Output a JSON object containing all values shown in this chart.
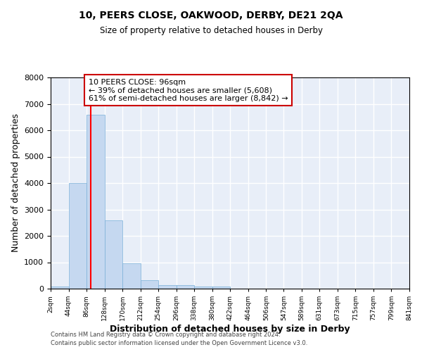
{
  "title": "10, PEERS CLOSE, OAKWOOD, DERBY, DE21 2QA",
  "subtitle": "Size of property relative to detached houses in Derby",
  "xlabel": "Distribution of detached houses by size in Derby",
  "ylabel": "Number of detached properties",
  "bin_edges": [
    2,
    44,
    86,
    128,
    170,
    212,
    254,
    296,
    338,
    380,
    422,
    464,
    506,
    547,
    589,
    631,
    673,
    715,
    757,
    799,
    841
  ],
  "bar_heights": [
    70,
    4000,
    6600,
    2600,
    970,
    330,
    130,
    130,
    70,
    70,
    0,
    0,
    0,
    0,
    0,
    0,
    0,
    0,
    0,
    0
  ],
  "bar_color": "#c5d8f0",
  "bar_edgecolor": "#7ab0d8",
  "bg_color": "#e8eef8",
  "grid_color": "#ffffff",
  "red_line_x": 96,
  "ylim": [
    0,
    8000
  ],
  "annotation_title": "10 PEERS CLOSE: 96sqm",
  "annotation_line1": "← 39% of detached houses are smaller (5,608)",
  "annotation_line2": "61% of semi-detached houses are larger (8,842) →",
  "annotation_box_color": "#ffffff",
  "annotation_box_edgecolor": "#cc0000",
  "footer1": "Contains HM Land Registry data © Crown copyright and database right 2024.",
  "footer2": "Contains public sector information licensed under the Open Government Licence v3.0."
}
